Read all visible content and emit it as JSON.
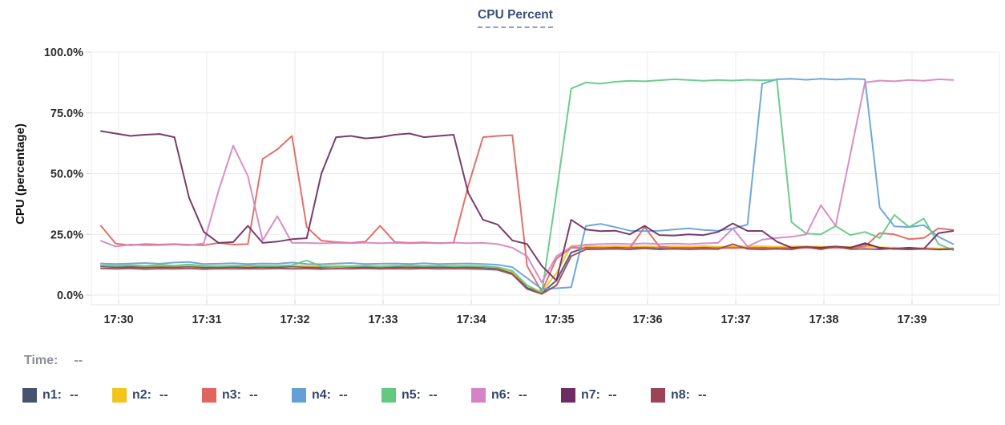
{
  "title": "CPU Percent",
  "time_row": {
    "label": "Time:",
    "value": "--"
  },
  "legend": [
    {
      "label": "n1:",
      "value": "--",
      "color": "#45536e"
    },
    {
      "label": "n2:",
      "value": "--",
      "color": "#f2c41d"
    },
    {
      "label": "n3:",
      "value": "--",
      "color": "#e0655c"
    },
    {
      "label": "n4:",
      "value": "--",
      "color": "#64a0d8"
    },
    {
      "label": "n5:",
      "value": "--",
      "color": "#62c882"
    },
    {
      "label": "n6:",
      "value": "--",
      "color": "#d583c6"
    },
    {
      "label": "n7:",
      "value": "--",
      "color": "#6d2c62"
    },
    {
      "label": "n8:",
      "value": "--",
      "color": "#9c4457"
    }
  ],
  "chart_data": {
    "type": "line",
    "title": "CPU Percent",
    "ylabel": "CPU (percentage)",
    "ylim": [
      0,
      100
    ],
    "grid": true,
    "legend_position": "bottom",
    "y_ticks": [
      {
        "label": "100.0%",
        "value": 100
      },
      {
        "label": "75.0%",
        "value": 75
      },
      {
        "label": "50.0%",
        "value": 50
      },
      {
        "label": "25.0%",
        "value": 25
      },
      {
        "label": "0.0%",
        "value": 0
      }
    ],
    "x_ticks": [
      {
        "label": "17:30",
        "minute": 0
      },
      {
        "label": "17:31",
        "minute": 1
      },
      {
        "label": "17:32",
        "minute": 2
      },
      {
        "label": "17:33",
        "minute": 3
      },
      {
        "label": "17:34",
        "minute": 4
      },
      {
        "label": "17:35",
        "minute": 5
      },
      {
        "label": "17:36",
        "minute": 6
      },
      {
        "label": "17:37",
        "minute": 7
      },
      {
        "label": "17:38",
        "minute": 8
      },
      {
        "label": "17:39",
        "minute": 9
      }
    ],
    "sample_start_minute": -0.2,
    "sample_step_minute": 0.1666667,
    "series": [
      {
        "name": "n1",
        "color": "#45536e",
        "values": [
          11.8,
          11.5,
          11.6,
          11.4,
          11.6,
          11.5,
          11.7,
          11.4,
          11.5,
          11.6,
          11.4,
          11.6,
          11.5,
          11.7,
          11.5,
          11.4,
          11.6,
          11.5,
          11.6,
          11.4,
          11.6,
          11.5,
          11.6,
          11.5,
          11.6,
          11.5,
          11.4,
          11.0,
          9.0,
          3.0,
          0.8,
          6.0,
          17.5,
          19.6,
          19.5,
          19.7,
          19.5,
          19.8,
          19.5,
          19.6,
          19.4,
          19.6,
          19.5,
          19.7,
          19.5,
          19.6,
          19.4,
          19.5,
          19.6,
          19.4,
          19.6,
          19.5,
          21.0,
          19.3,
          19.0,
          18.8,
          19.2,
          18.7,
          18.9
        ]
      },
      {
        "name": "n2",
        "color": "#f2c41d",
        "values": [
          12.3,
          12.0,
          12.2,
          11.9,
          12.1,
          12.0,
          12.2,
          11.9,
          12.0,
          12.1,
          11.9,
          12.1,
          12.0,
          12.2,
          12.0,
          11.9,
          12.1,
          12.0,
          12.1,
          11.9,
          12.1,
          12.0,
          12.1,
          12.0,
          12.1,
          12.0,
          11.8,
          11.4,
          9.5,
          4.0,
          1.2,
          9.0,
          20.3,
          20.2,
          20.0,
          20.2,
          20.0,
          20.1,
          19.9,
          20.1,
          20.0,
          20.2,
          19.9,
          20.1,
          20.0,
          20.1,
          19.9,
          20.0,
          20.1,
          19.9,
          20.0,
          19.8,
          19.9,
          19.7,
          19.5,
          19.3,
          19.4,
          19.2,
          19.3
        ]
      },
      {
        "name": "n3",
        "color": "#e0655c",
        "values": [
          28.5,
          21.2,
          20.5,
          21.0,
          20.8,
          21.0,
          20.7,
          20.5,
          21.5,
          20.8,
          21.0,
          56.0,
          60.0,
          65.5,
          28.0,
          22.4,
          21.8,
          21.5,
          22.0,
          28.5,
          21.8,
          21.5,
          21.7,
          21.4,
          21.6,
          45.0,
          65.0,
          65.5,
          65.8,
          12.0,
          1.5,
          15.0,
          19.5,
          19.3,
          19.5,
          19.2,
          19.4,
          28.0,
          20.0,
          19.3,
          19.5,
          19.2,
          19.4,
          19.3,
          19.5,
          19.2,
          19.4,
          19.3,
          19.5,
          19.3,
          19.5,
          19.4,
          20.0,
          25.5,
          25.0,
          23.0,
          23.5,
          27.5,
          26.8
        ]
      },
      {
        "name": "n4",
        "color": "#64a0d8",
        "values": [
          13.0,
          12.8,
          13.0,
          13.2,
          12.9,
          13.4,
          13.6,
          12.8,
          12.9,
          13.1,
          12.8,
          13.0,
          12.9,
          13.4,
          12.8,
          12.7,
          13.0,
          13.2,
          12.8,
          12.9,
          13.0,
          12.8,
          13.1,
          12.8,
          12.9,
          13.0,
          12.8,
          12.5,
          11.5,
          7.0,
          2.5,
          2.8,
          3.2,
          28.4,
          29.3,
          28.0,
          26.5,
          26.3,
          26.5,
          27.0,
          27.5,
          26.8,
          26.5,
          27.4,
          29.0,
          87.0,
          88.8,
          89.0,
          88.6,
          89.0,
          88.7,
          89.0,
          88.8,
          36.0,
          28.3,
          28.0,
          28.8,
          24.0,
          21.0
        ]
      },
      {
        "name": "n5",
        "color": "#62c882",
        "values": [
          12.2,
          12.0,
          12.3,
          12.0,
          12.4,
          12.1,
          12.6,
          12.0,
          11.8,
          12.0,
          12.2,
          11.9,
          12.0,
          12.3,
          14.3,
          11.8,
          11.5,
          11.8,
          12.0,
          11.7,
          12.0,
          12.2,
          11.9,
          12.1,
          11.8,
          12.0,
          11.9,
          11.5,
          10.0,
          4.0,
          0.8,
          42.0,
          85.0,
          87.5,
          87.0,
          87.8,
          88.2,
          88.0,
          88.4,
          88.8,
          88.5,
          88.2,
          88.5,
          88.3,
          88.6,
          88.4,
          88.6,
          30.0,
          25.3,
          25.0,
          28.4,
          24.7,
          26.0,
          23.5,
          33.0,
          28.0,
          31.5,
          21.0,
          18.5
        ]
      },
      {
        "name": "n6",
        "color": "#d583c6",
        "values": [
          22.3,
          20.0,
          20.8,
          20.5,
          20.6,
          20.8,
          20.5,
          21.3,
          43.0,
          61.5,
          49.0,
          22.5,
          32.5,
          21.5,
          21.5,
          21.3,
          21.5,
          21.4,
          21.6,
          21.4,
          21.5,
          21.3,
          21.5,
          21.4,
          21.6,
          21.4,
          21.5,
          21.0,
          19.5,
          16.0,
          5.2,
          16.0,
          19.8,
          20.8,
          21.0,
          21.2,
          21.0,
          21.3,
          21.0,
          21.2,
          21.0,
          21.3,
          21.5,
          27.4,
          20.0,
          22.8,
          23.5,
          24.0,
          25.0,
          37.0,
          28.5,
          58.0,
          87.5,
          88.3,
          88.0,
          88.5,
          88.2,
          88.8,
          88.5
        ]
      },
      {
        "name": "n7",
        "color": "#6d2c62",
        "values": [
          67.5,
          66.5,
          65.5,
          66.0,
          66.3,
          65.0,
          40.0,
          26.0,
          21.5,
          21.8,
          28.5,
          21.5,
          22.0,
          23.0,
          23.4,
          50.0,
          65.0,
          65.5,
          64.5,
          65.0,
          66.0,
          66.5,
          65.0,
          65.5,
          66.0,
          42.0,
          31.0,
          29.0,
          22.5,
          21.0,
          12.0,
          6.0,
          31.0,
          27.0,
          26.3,
          26.5,
          25.0,
          28.5,
          24.7,
          24.5,
          25.0,
          24.7,
          26.0,
          29.5,
          26.4,
          26.4,
          22.0,
          19.5,
          19.8,
          19.5,
          20.0,
          19.5,
          21.4,
          19.5,
          19.0,
          19.5,
          19.0,
          25.5,
          26.4
        ]
      },
      {
        "name": "n8",
        "color": "#9c4457",
        "values": [
          11.0,
          10.8,
          11.0,
          10.7,
          10.9,
          10.8,
          11.0,
          10.7,
          10.9,
          10.8,
          10.9,
          10.8,
          11.0,
          10.8,
          10.9,
          10.7,
          10.9,
          10.8,
          11.0,
          10.8,
          10.9,
          10.8,
          11.0,
          10.8,
          10.9,
          10.8,
          10.7,
          10.4,
          8.5,
          2.5,
          0.5,
          4.0,
          16.0,
          18.8,
          18.9,
          19.0,
          18.8,
          19.2,
          18.8,
          19.0,
          18.8,
          19.0,
          18.9,
          21.0,
          19.0,
          18.8,
          19.0,
          18.8,
          19.8,
          18.8,
          20.0,
          18.9,
          19.0,
          18.8,
          19.2,
          18.8,
          19.0,
          18.8,
          19.0
        ]
      }
    ]
  }
}
